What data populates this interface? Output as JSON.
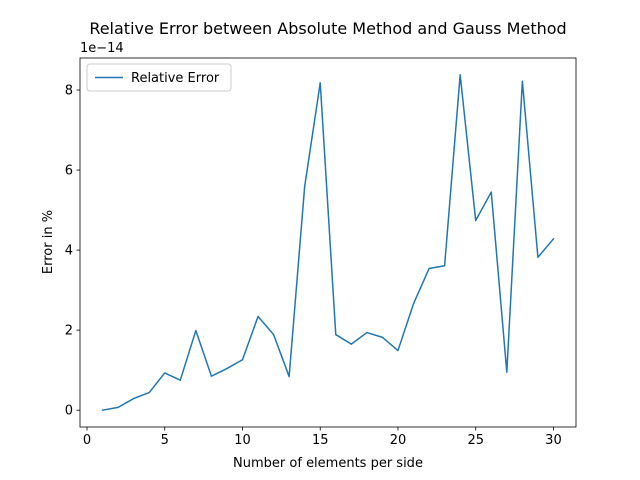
{
  "chart_data": {
    "type": "line",
    "title": "Relative Error between Absolute Method and Gauss Method",
    "xlabel": "Number of elements per side",
    "ylabel": "Error in %",
    "y_offset_label": "1e−14",
    "x": [
      1,
      2,
      3,
      4,
      5,
      6,
      7,
      8,
      9,
      10,
      11,
      12,
      13,
      14,
      15,
      16,
      17,
      18,
      19,
      20,
      21,
      22,
      23,
      24,
      25,
      26,
      27,
      28,
      29,
      30
    ],
    "series": [
      {
        "name": "Relative Error",
        "color": "#1f77b4",
        "values": [
          0.0,
          0.07,
          0.29,
          0.44,
          0.93,
          0.75,
          1.99,
          0.85,
          1.04,
          1.26,
          2.34,
          1.89,
          0.84,
          5.59,
          8.18,
          1.89,
          1.65,
          1.94,
          1.82,
          1.49,
          2.66,
          3.54,
          3.61,
          8.38,
          4.74,
          5.45,
          0.95,
          8.22,
          3.82,
          4.28
        ]
      }
    ],
    "xlim": [
      -0.45,
      31.45
    ],
    "ylim": [
      -0.42,
      8.8
    ],
    "xticks": [
      0,
      5,
      10,
      15,
      20,
      25,
      30
    ],
    "yticks": [
      0,
      2,
      4,
      6,
      8
    ],
    "grid": false,
    "legend_position": "upper left"
  }
}
